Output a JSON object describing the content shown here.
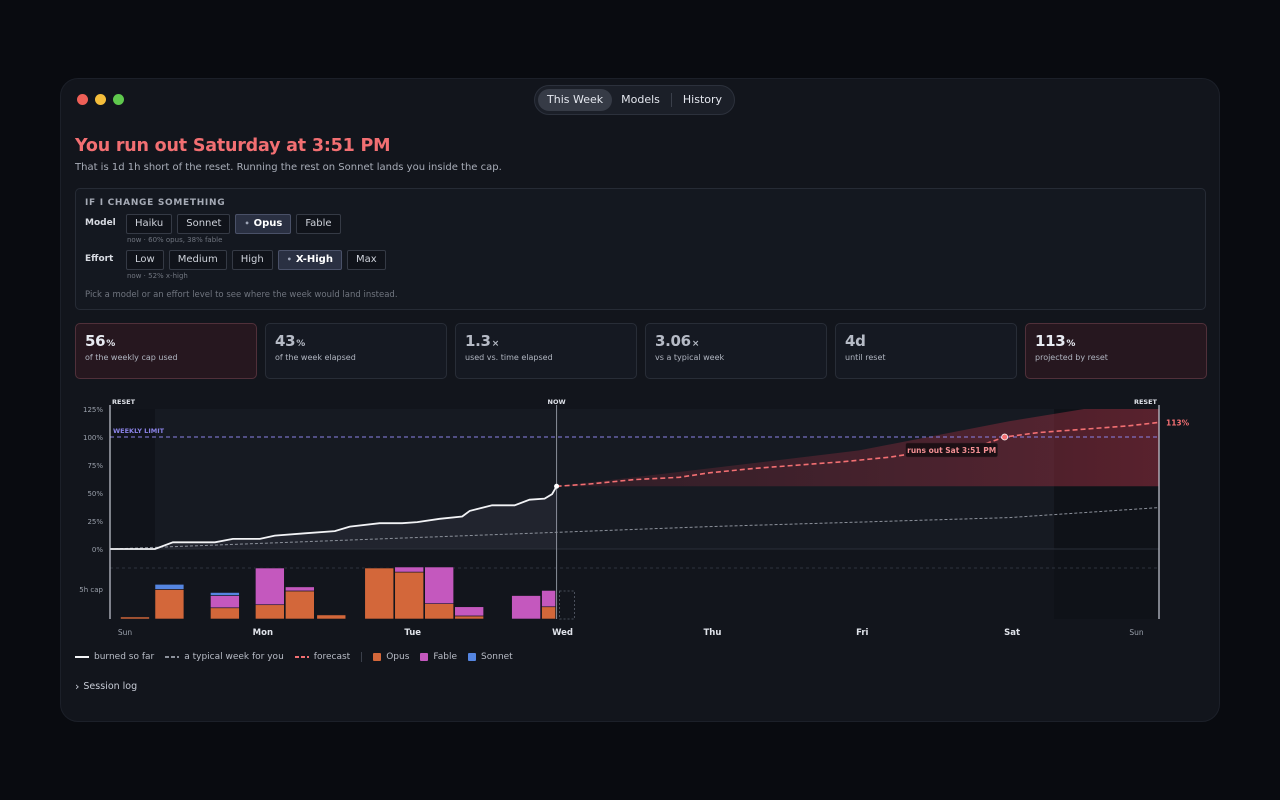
{
  "tabs": [
    {
      "label": "This Week",
      "active": true
    },
    {
      "label": "Models",
      "active": false
    },
    {
      "label": "History",
      "active": false
    }
  ],
  "headline": "You run out Saturday at 3:51 PM",
  "subline": "That is 1d 1h short of the reset. Running the rest on Sonnet lands you inside the cap.",
  "change": {
    "title": "IF I CHANGE SOMETHING",
    "model_label": "Model",
    "model_options": [
      "Haiku",
      "Sonnet",
      "Opus",
      "Fable"
    ],
    "model_selected": "Opus",
    "model_note": "now · 60% opus, 38% fable",
    "effort_label": "Effort",
    "effort_options": [
      "Low",
      "Medium",
      "High",
      "X-High",
      "Max"
    ],
    "effort_selected": "X-High",
    "effort_note": "now · 52% x-high",
    "hint": "Pick a model or an effort level to see where the week would land instead."
  },
  "stats": [
    {
      "value": "56",
      "unit": "%",
      "label": "of the weekly cap used",
      "tone": "warn"
    },
    {
      "value": "43",
      "unit": "%",
      "label": "of the week elapsed",
      "tone": "dim"
    },
    {
      "value": "1.3",
      "unit": "×",
      "label": "used vs. time elapsed",
      "tone": "dim"
    },
    {
      "value": "3.06",
      "unit": "×",
      "label": "vs a typical week",
      "tone": "dim"
    },
    {
      "value": "4d",
      "unit": "",
      "label": "until reset",
      "tone": "dim"
    },
    {
      "value": "113",
      "unit": "%",
      "label": "projected by reset",
      "tone": "warn"
    }
  ],
  "colors": {
    "accent": "#f26f72",
    "limit": "#8a82e6",
    "opus": "#d3673a",
    "fable": "#c458be",
    "sonnet": "#5585e0",
    "typical": "#8b909a"
  },
  "chart_data": {
    "type": "area",
    "y_ticks": [
      "125%",
      "100%",
      "75%",
      "50%",
      "25%",
      "0%"
    ],
    "ylim": [
      0,
      125
    ],
    "x_labels": [
      {
        "label": "Sun",
        "day": 0.1,
        "minor": true
      },
      {
        "label": "Mon",
        "day": 1.0
      },
      {
        "label": "Tue",
        "day": 2.0
      },
      {
        "label": "Wed",
        "day": 3.0
      },
      {
        "label": "Thu",
        "day": 4.0
      },
      {
        "label": "Fri",
        "day": 5.0
      },
      {
        "label": "Sat",
        "day": 6.0
      },
      {
        "label": "Sun",
        "day": 6.85,
        "minor": true
      }
    ],
    "markers": {
      "reset_left": "RESET",
      "now": "NOW",
      "reset_right": "RESET"
    },
    "now_day": 2.98,
    "end_day": 7.0,
    "limit_label": "WEEKLY LIMIT",
    "limit_value": 100,
    "cap_label": "5h cap",
    "end_label": "113%",
    "runout_label": "runs out Sat 3:51 PM",
    "runout_day": 5.97,
    "burned": [
      [
        0,
        0
      ],
      [
        0.3,
        0
      ],
      [
        0.42,
        6
      ],
      [
        0.7,
        6
      ],
      [
        0.82,
        9
      ],
      [
        1.0,
        9
      ],
      [
        1.1,
        12
      ],
      [
        1.3,
        14
      ],
      [
        1.5,
        16
      ],
      [
        1.6,
        20
      ],
      [
        1.8,
        23
      ],
      [
        1.95,
        23
      ],
      [
        2.05,
        24
      ],
      [
        2.2,
        27
      ],
      [
        2.35,
        29
      ],
      [
        2.4,
        34
      ],
      [
        2.55,
        39
      ],
      [
        2.7,
        39
      ],
      [
        2.8,
        44
      ],
      [
        2.9,
        45
      ],
      [
        2.95,
        49
      ],
      [
        2.98,
        56
      ]
    ],
    "typical": [
      [
        0,
        0
      ],
      [
        1,
        5
      ],
      [
        2,
        10
      ],
      [
        3,
        15
      ],
      [
        4,
        20
      ],
      [
        5,
        24
      ],
      [
        6,
        28
      ],
      [
        7,
        37
      ]
    ],
    "forecast": [
      [
        2.98,
        56
      ],
      [
        3.2,
        58
      ],
      [
        3.5,
        62
      ],
      [
        3.8,
        64
      ],
      [
        4.0,
        68
      ],
      [
        4.3,
        72
      ],
      [
        4.6,
        75
      ],
      [
        4.9,
        78
      ],
      [
        5.2,
        82
      ],
      [
        5.5,
        88
      ],
      [
        5.8,
        92
      ],
      [
        5.97,
        100
      ],
      [
        6.2,
        104
      ],
      [
        6.5,
        107
      ],
      [
        6.8,
        110
      ],
      [
        7.0,
        113
      ]
    ],
    "forecast_band": {
      "upper": [
        [
          2.98,
          56
        ],
        [
          4,
          72
        ],
        [
          5,
          88
        ],
        [
          6,
          114
        ],
        [
          6.5,
          125
        ],
        [
          7,
          125
        ]
      ],
      "lower": [
        [
          2.98,
          56
        ],
        [
          7,
          56
        ]
      ]
    },
    "series": [
      {
        "name": "Opus"
      },
      {
        "name": "Fable"
      },
      {
        "name": "Sonnet"
      }
    ],
    "sessions": [
      {
        "day": 0.07,
        "width": 0.2,
        "opus": 4,
        "fable": 0,
        "sonnet": 0
      },
      {
        "day": 0.3,
        "width": 0.2,
        "opus": 58,
        "fable": 0,
        "sonnet": 10
      },
      {
        "day": 0.67,
        "width": 0.2,
        "opus": 22,
        "fable": 24,
        "sonnet": 6
      },
      {
        "day": 0.97,
        "width": 0.2,
        "opus": 28,
        "fable": 72,
        "sonnet": 0
      },
      {
        "day": 1.17,
        "width": 0.2,
        "opus": 55,
        "fable": 8,
        "sonnet": 0
      },
      {
        "day": 1.38,
        "width": 0.2,
        "opus": 8,
        "fable": 0,
        "sonnet": 0
      },
      {
        "day": 1.7,
        "width": 0.2,
        "opus": 100,
        "fable": 0,
        "sonnet": 0
      },
      {
        "day": 1.9,
        "width": 0.2,
        "opus": 92,
        "fable": 10,
        "sonnet": 0
      },
      {
        "day": 2.1,
        "width": 0.2,
        "opus": 30,
        "fable": 72,
        "sonnet": 0
      },
      {
        "day": 2.3,
        "width": 0.2,
        "opus": 6,
        "fable": 18,
        "sonnet": 0
      },
      {
        "day": 2.68,
        "width": 0.2,
        "opus": 0,
        "fable": 46,
        "sonnet": 0
      },
      {
        "day": 2.88,
        "width": 0.1,
        "opus": 24,
        "fable": 32,
        "sonnet": 0
      }
    ],
    "sessions_max": 100
  },
  "legend": [
    {
      "kind": "line",
      "label": "burned so far",
      "color": "#f2f3f6"
    },
    {
      "kind": "dash",
      "label": "a typical week for you",
      "color": "#8b909a"
    },
    {
      "kind": "dash",
      "label": "forecast",
      "color": "#f26f72"
    },
    {
      "kind": "sep"
    },
    {
      "kind": "sq",
      "label": "Opus",
      "color": "#d3673a"
    },
    {
      "kind": "sq",
      "label": "Fable",
      "color": "#c458be"
    },
    {
      "kind": "sq",
      "label": "Sonnet",
      "color": "#5585e0"
    }
  ],
  "session_log": "Session log"
}
